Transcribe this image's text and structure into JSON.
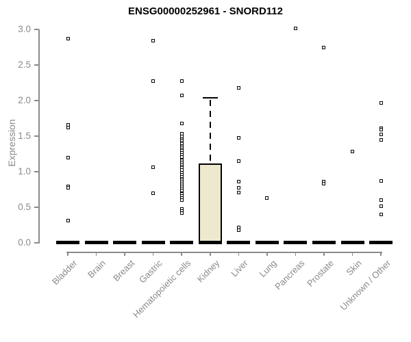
{
  "title": "ENSG00000252961 - SNORD112",
  "chart_data": {
    "type": "boxplot",
    "title": "ENSG00000252961 - SNORD112",
    "xlabel": "",
    "ylabel": "Expression",
    "ylim": [
      0.0,
      3.0
    ],
    "yticks": [
      "0.0",
      "0.5",
      "1.0",
      "1.5",
      "2.0",
      "2.5",
      "3.0"
    ],
    "grid": false,
    "legend": "none",
    "categories": [
      "Bladder",
      "Brain",
      "Breast",
      "Gastric",
      "Hematopoietic cells",
      "Kidney",
      "Liver",
      "Lung",
      "Pancreas",
      "Prostate",
      "Skin",
      "Unknown / Other"
    ],
    "series": [
      {
        "category": "Bladder",
        "median": 0.0,
        "points": [
          2.87,
          1.66,
          1.62,
          1.2,
          0.79,
          0.77,
          0.31
        ]
      },
      {
        "category": "Brain",
        "median": 0.0,
        "points": []
      },
      {
        "category": "Breast",
        "median": 0.0,
        "points": []
      },
      {
        "category": "Gastric",
        "median": 0.0,
        "points": [
          2.84,
          2.27,
          1.06,
          0.7
        ]
      },
      {
        "category": "Hematopoietic cells",
        "median": 0.0,
        "points": [
          2.27,
          2.07,
          1.68,
          1.53,
          1.5,
          1.46,
          1.44,
          1.41,
          1.39,
          1.36,
          1.34,
          1.31,
          1.29,
          1.26,
          1.24,
          1.21,
          1.16,
          1.13,
          1.1,
          1.07,
          1.05,
          1.02,
          0.99,
          0.96,
          0.93,
          0.9,
          0.88,
          0.85,
          0.82,
          0.79,
          0.76,
          0.74,
          0.69,
          0.66,
          0.63,
          0.6,
          0.48,
          0.45,
          0.42
        ]
      },
      {
        "category": "Kidney",
        "median": 0.0,
        "box": {
          "q1": 0.0,
          "median": 0.0,
          "q3": 1.12,
          "whisker_high": 2.04,
          "whisker_low": 0.0
        },
        "points": []
      },
      {
        "category": "Liver",
        "median": 0.0,
        "points": [
          2.18,
          1.48,
          1.15,
          0.86,
          0.77,
          0.71,
          0.22,
          0.18
        ]
      },
      {
        "category": "Lung",
        "median": 0.0,
        "points": [
          0.63
        ]
      },
      {
        "category": "Pancreas",
        "median": 0.0,
        "points": [
          3.01
        ]
      },
      {
        "category": "Prostate",
        "median": 0.0,
        "points": [
          2.75,
          0.86,
          0.83
        ]
      },
      {
        "category": "Skin",
        "median": 0.0,
        "points": [
          1.28
        ]
      },
      {
        "category": "Unknown / Other",
        "median": 0.0,
        "points": [
          1.97,
          1.61,
          1.59,
          1.52,
          1.45,
          0.87,
          0.6,
          0.51,
          0.4
        ]
      }
    ],
    "colors": {
      "box_fill": "#EDE8CE",
      "box_border": "#000000",
      "point": "#000000",
      "median": "#000000",
      "axis": "#8A8A8A",
      "title": "#000000"
    }
  }
}
